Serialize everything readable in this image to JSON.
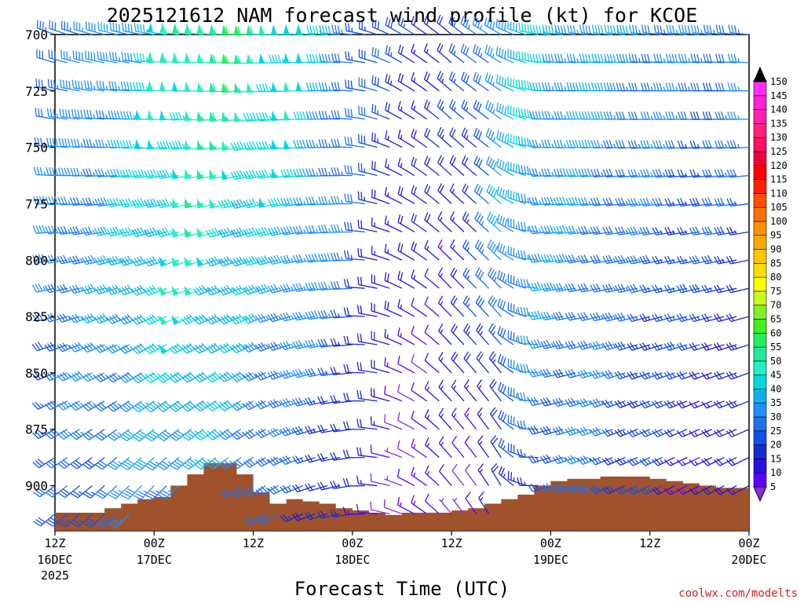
{
  "chart_data": {
    "type": "wind-barb-profile",
    "title": "2025121612 NAM forecast wind profile (kt) for KCOE",
    "xlabel": "Forecast Time (UTC)",
    "credit": "coolwx.com/modelts",
    "y_axis": {
      "ticks": [
        700,
        725,
        750,
        775,
        800,
        825,
        850,
        875,
        900
      ],
      "range": [
        700,
        920
      ],
      "inverted": true
    },
    "x_axis": {
      "range_hours": [
        0,
        84
      ],
      "ticks": [
        {
          "hour": 0,
          "label": "12Z",
          "date": "16DEC",
          "year": "2025"
        },
        {
          "hour": 12,
          "label": "00Z",
          "date": "17DEC",
          "year": ""
        },
        {
          "hour": 24,
          "label": "12Z",
          "date": "",
          "year": ""
        },
        {
          "hour": 36,
          "label": "00Z",
          "date": "18DEC",
          "year": ""
        },
        {
          "hour": 48,
          "label": "12Z",
          "date": "",
          "year": ""
        },
        {
          "hour": 60,
          "label": "00Z",
          "date": "19DEC",
          "year": ""
        },
        {
          "hour": 72,
          "label": "12Z",
          "date": "",
          "year": ""
        },
        {
          "hour": 84,
          "label": "00Z",
          "date": "20DEC",
          "year": ""
        }
      ]
    },
    "colorbar": {
      "levels": [
        5,
        10,
        15,
        20,
        25,
        30,
        35,
        40,
        45,
        50,
        55,
        60,
        65,
        70,
        75,
        80,
        85,
        90,
        95,
        100,
        105,
        110,
        115,
        120,
        125,
        130,
        135,
        140,
        145,
        150
      ],
      "colors": [
        "#8a2be2",
        "#5a00ff",
        "#2a10e0",
        "#1a2ad0",
        "#1050e8",
        "#2070f0",
        "#1e90ff",
        "#10b0f0",
        "#00d8e0",
        "#20f0c0",
        "#20e8a0",
        "#20f060",
        "#40f020",
        "#80f020",
        "#c8f820",
        "#ffff00",
        "#ffe000",
        "#ffc800",
        "#ffa800",
        "#ff9000",
        "#ff7000",
        "#ff5000",
        "#ff2000",
        "#ff0000",
        "#f0003a",
        "#ff1060",
        "#ff2080",
        "#ff20b0",
        "#ff20d8",
        "#ff30ff"
      ]
    },
    "terrain": {
      "color": "#a0522d",
      "hours": [
        0,
        2,
        4,
        6,
        8,
        10,
        12,
        14,
        16,
        18,
        20,
        22,
        24,
        26,
        28,
        30,
        32,
        34,
        36,
        38,
        40,
        42,
        44,
        46,
        48,
        50,
        52,
        54,
        56,
        58,
        60,
        62,
        64,
        66,
        68,
        70,
        72,
        74,
        76,
        78,
        80,
        82,
        84
      ],
      "pressure": [
        912,
        912,
        912,
        910,
        908,
        906,
        905,
        900,
        895,
        890,
        890,
        895,
        903,
        908,
        906,
        907,
        908,
        910,
        911,
        912,
        913,
        912,
        912,
        912,
        911,
        910,
        908,
        906,
        904,
        900,
        898,
        897,
        897,
        896,
        896,
        896,
        897,
        898,
        899,
        900,
        901,
        901,
        902
      ]
    },
    "wind_field": {
      "levels": [
        700,
        712.5,
        725,
        737.5,
        750,
        762.5,
        775,
        787.5,
        800,
        812.5,
        825,
        837.5,
        850,
        862.5,
        875,
        887.5,
        900,
        912.5
      ],
      "hours": [
        0,
        1.5,
        3,
        4.5,
        6,
        7.5,
        9,
        10.5,
        12,
        13.5,
        15,
        16.5,
        18,
        19.5,
        21,
        22.5,
        24,
        25.5,
        27,
        28.5,
        30,
        31.5,
        33,
        34.5,
        36,
        37.5,
        39,
        40.5,
        42,
        43.5,
        45,
        46.5,
        48,
        49.5,
        51,
        52.5,
        54,
        55.5,
        57,
        58.5,
        60,
        61.5,
        63,
        64.5,
        66,
        67.5,
        69,
        70.5,
        72,
        73.5,
        75,
        76.5,
        78,
        79.5,
        81,
        82.5,
        84
      ],
      "speed_keypoints": {
        "hours": [
          0,
          6,
          12,
          18,
          22,
          26,
          30,
          34,
          38,
          42,
          46,
          50,
          54,
          58,
          62,
          66,
          70,
          74,
          78,
          84
        ],
        "top_kt": [
          35,
          35,
          45,
          55,
          60,
          55,
          50,
          40,
          30,
          25,
          20,
          25,
          40,
          45,
          40,
          40,
          40,
          35,
          35,
          35
        ],
        "mid_kt": [
          35,
          38,
          45,
          50,
          45,
          40,
          40,
          35,
          25,
          15,
          15,
          20,
          35,
          40,
          35,
          35,
          30,
          30,
          25,
          25
        ],
        "low_kt": [
          25,
          30,
          35,
          40,
          35,
          30,
          25,
          20,
          15,
          10,
          10,
          10,
          15,
          25,
          30,
          30,
          25,
          20,
          15,
          15
        ]
      },
      "direction_keypoints": {
        "hours": [
          0,
          12,
          24,
          36,
          42,
          48,
          54,
          60,
          72,
          84
        ],
        "top_deg": [
          290,
          280,
          270,
          275,
          300,
          310,
          300,
          275,
          275,
          275
        ],
        "low_deg": [
          230,
          220,
          230,
          260,
          290,
          320,
          330,
          250,
          240,
          240
        ]
      }
    }
  }
}
